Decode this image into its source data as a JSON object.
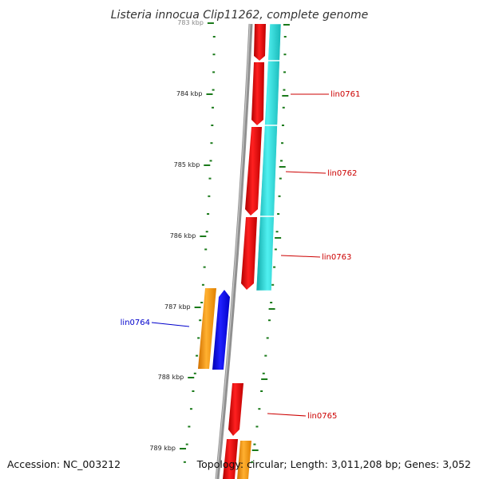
{
  "title": "Listeria innocua Clip11262, complete genome",
  "footer": {
    "accession": "Accession: NC_003212",
    "summary": "Topology: circular; Length: 3,011,208 bp; Genes: 3,052"
  },
  "colors": {
    "backbone": "#808080",
    "ticks": "#1a7a1a",
    "forward_gene": "#ff0000",
    "reverse_gene": "#20d0d0",
    "label_forward": "#cc0000",
    "label_reverse": "#0000cc",
    "orange_gene": "#ff9900",
    "blue_gene": "#0000ff"
  },
  "ticks": [
    {
      "label": "783 kbp",
      "major": true
    },
    {
      "label": "784 kbp",
      "major": true
    },
    {
      "label": "785 kbp",
      "major": true
    },
    {
      "label": "786 kbp",
      "major": true
    },
    {
      "label": "787 kbp",
      "major": true
    },
    {
      "label": "788 kbp",
      "major": true
    },
    {
      "label": "789 kbp",
      "major": true
    }
  ],
  "gene_labels": [
    {
      "text": "lin0761",
      "strand": "forward"
    },
    {
      "text": "lin0762",
      "strand": "forward"
    },
    {
      "text": "lin0763",
      "strand": "forward"
    },
    {
      "text": "lin0764",
      "strand": "reverse"
    },
    {
      "text": "lin0765",
      "strand": "forward"
    }
  ]
}
